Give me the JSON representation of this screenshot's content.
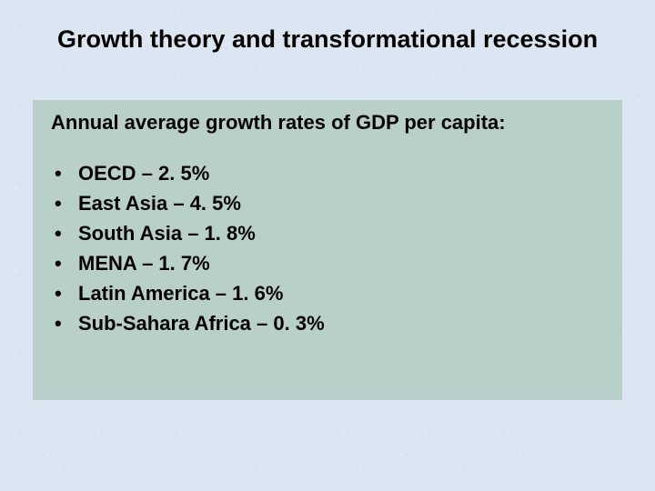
{
  "slide": {
    "title": "Growth theory and transformational recession",
    "subtitle": "Annual average growth rates of GDP per capita:",
    "bullets": [
      {
        "text": "OECD –  2. 5%"
      },
      {
        "text": "East Asia – 4. 5%"
      },
      {
        "text": "South Asia – 1. 8%"
      },
      {
        "text": "MENA –  1. 7%"
      },
      {
        "text": "Latin America – 1. 6%"
      },
      {
        "text": "Sub-Sahara Africa – 0. 3%"
      }
    ],
    "bullet_char": "•"
  },
  "style": {
    "background_color": "#dce5f2",
    "box_color": "#b8cfca",
    "title_fontsize": 27,
    "subtitle_fontsize": 22,
    "bullet_fontsize": 22,
    "font_family": "Arial",
    "text_color": "#000000",
    "font_weight": "bold"
  }
}
